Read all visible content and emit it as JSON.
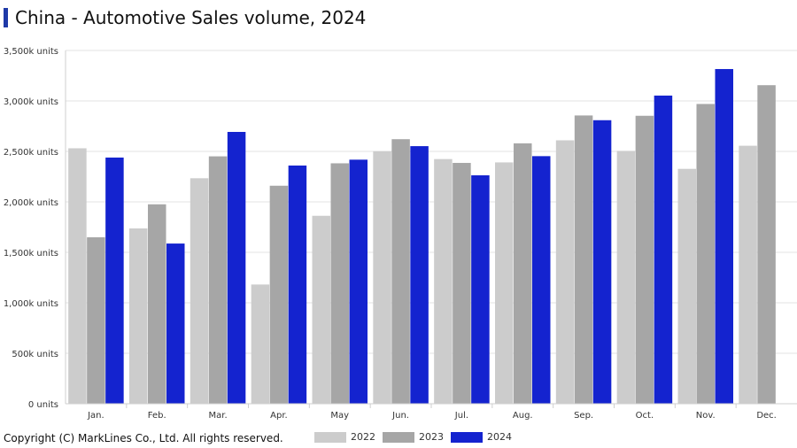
{
  "title": "China - Automotive Sales volume, 2024",
  "copyright": "Copyright (C) MarkLines Co., Ltd. All rights reserved.",
  "chart_data": {
    "type": "bar",
    "title": "China - Automotive Sales volume, 2024",
    "xlabel": "",
    "ylabel": "",
    "ylim": [
      0,
      3500
    ],
    "yticks": [
      0,
      500,
      1000,
      1500,
      2000,
      2500,
      3000,
      3500
    ],
    "ytick_labels": [
      "0 units",
      "500k units",
      "1,000k units",
      "1,500k units",
      "2,000k units",
      "2,500k units",
      "3,000k units",
      "3,500k units"
    ],
    "grid": true,
    "legend_position": "bottom",
    "categories": [
      "Jan.",
      "Feb.",
      "Mar.",
      "Apr.",
      "May",
      "Jun.",
      "Jul.",
      "Aug.",
      "Sep.",
      "Oct.",
      "Nov.",
      "Dec."
    ],
    "series": [
      {
        "name": "2022",
        "color": "#cccccc",
        "values": [
          2531,
          1737,
          2234,
          1181,
          1862,
          2502,
          2424,
          2391,
          2610,
          2505,
          2327,
          2556
        ]
      },
      {
        "name": "2023",
        "color": "#a6a6a6",
        "values": [
          1649,
          1976,
          2451,
          2160,
          2382,
          2621,
          2386,
          2580,
          2856,
          2853,
          2970,
          3156
        ]
      },
      {
        "name": "2024",
        "color": "#1423cf",
        "values": [
          2439,
          1587,
          2693,
          2360,
          2418,
          2552,
          2263,
          2453,
          2809,
          3053,
          3316,
          null
        ]
      }
    ]
  }
}
